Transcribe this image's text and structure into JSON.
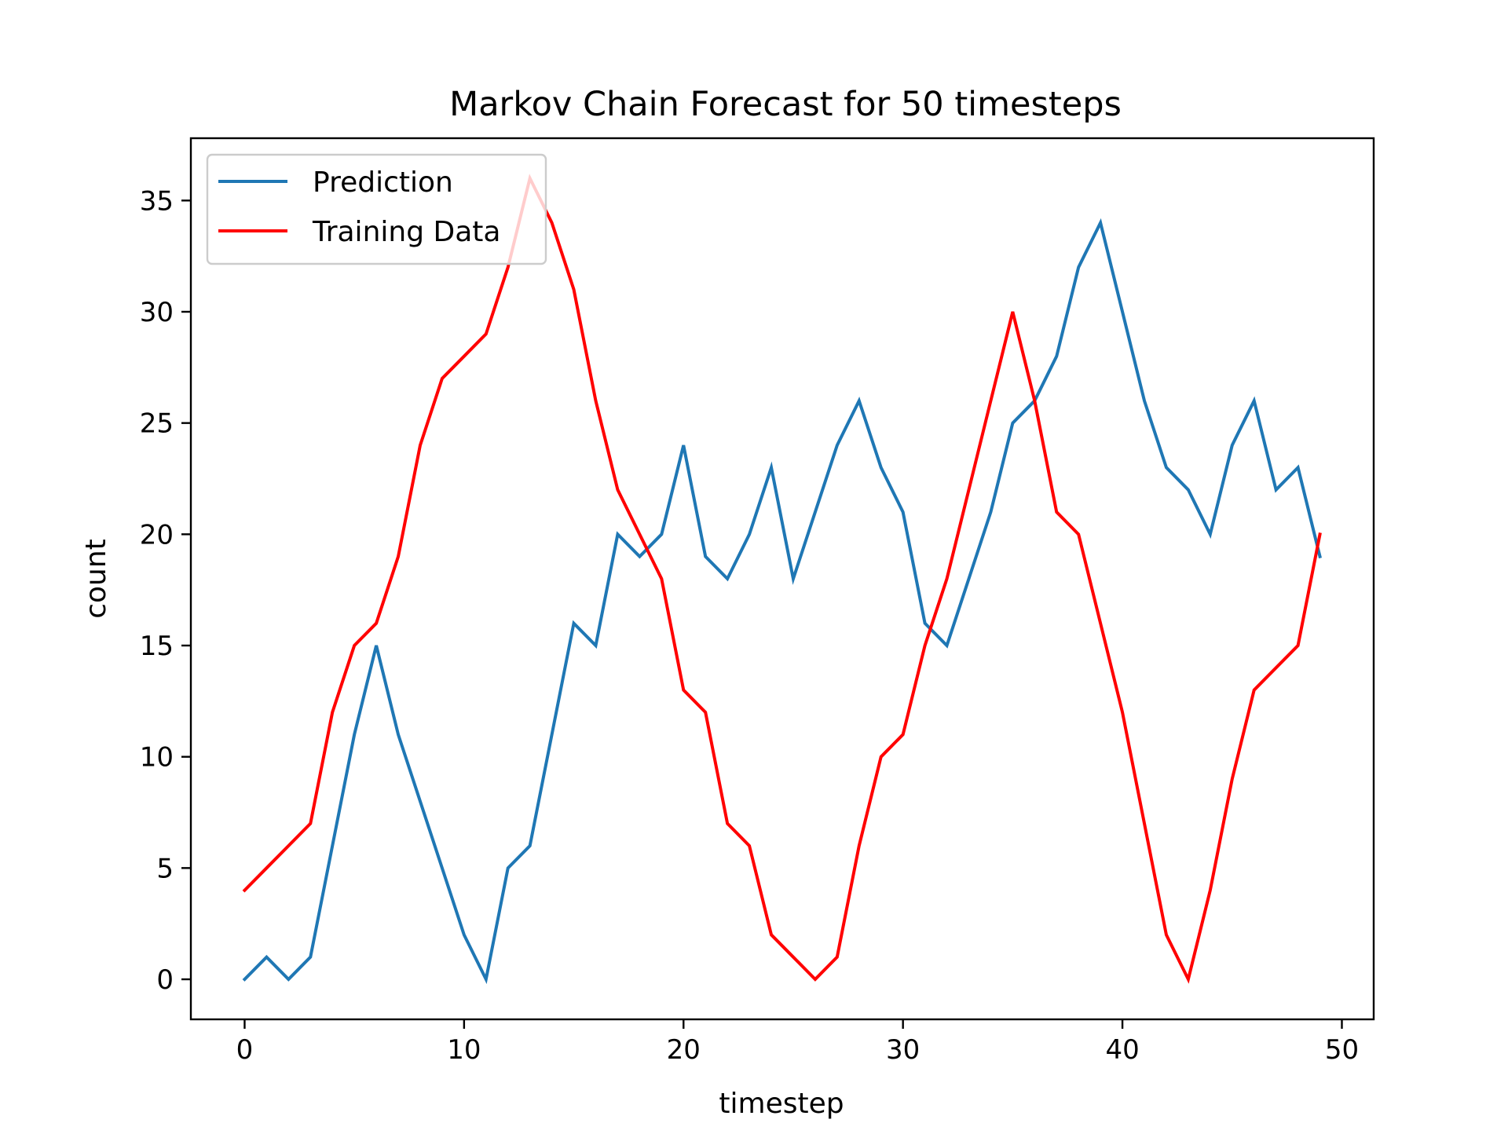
{
  "chart_data": {
    "type": "line",
    "title": "Markov Chain Forecast for 50 timesteps",
    "xlabel": "timestep",
    "ylabel": "count",
    "xlim": [
      -2.45,
      51.45
    ],
    "ylim": [
      -1.8,
      37.8
    ],
    "xticks": [
      0,
      10,
      20,
      30,
      40,
      50
    ],
    "yticks": [
      0,
      5,
      10,
      15,
      20,
      25,
      30,
      35
    ],
    "grid": false,
    "legend_position": "upper-left",
    "x": [
      0,
      1,
      2,
      3,
      4,
      5,
      6,
      7,
      8,
      9,
      10,
      11,
      12,
      13,
      14,
      15,
      16,
      17,
      18,
      19,
      20,
      21,
      22,
      23,
      24,
      25,
      26,
      27,
      28,
      29,
      30,
      31,
      32,
      33,
      34,
      35,
      36,
      37,
      38,
      39,
      40,
      41,
      42,
      43,
      44,
      45,
      46,
      47,
      48,
      49
    ],
    "series": [
      {
        "name": "Prediction",
        "color": "#1f77b4",
        "values": [
          0,
          1,
          0,
          1,
          6,
          11,
          15,
          11,
          8,
          5,
          2,
          0,
          5,
          6,
          11,
          16,
          15,
          20,
          19,
          20,
          24,
          19,
          18,
          20,
          23,
          18,
          21,
          24,
          26,
          23,
          21,
          16,
          15,
          18,
          21,
          25,
          26,
          28,
          32,
          34,
          30,
          26,
          23,
          22,
          20,
          24,
          26,
          22,
          23,
          19
        ]
      },
      {
        "name": "Training Data",
        "color": "#ff0000",
        "values": [
          4,
          5,
          6,
          7,
          12,
          15,
          16,
          19,
          24,
          27,
          28,
          29,
          32,
          36,
          34,
          31,
          26,
          22,
          20,
          18,
          13,
          12,
          7,
          6,
          2,
          1,
          0,
          1,
          6,
          10,
          11,
          15,
          18,
          22,
          26,
          30,
          26,
          21,
          20,
          16,
          12,
          7,
          2,
          0,
          4,
          9,
          13,
          14,
          15,
          20
        ]
      }
    ]
  }
}
